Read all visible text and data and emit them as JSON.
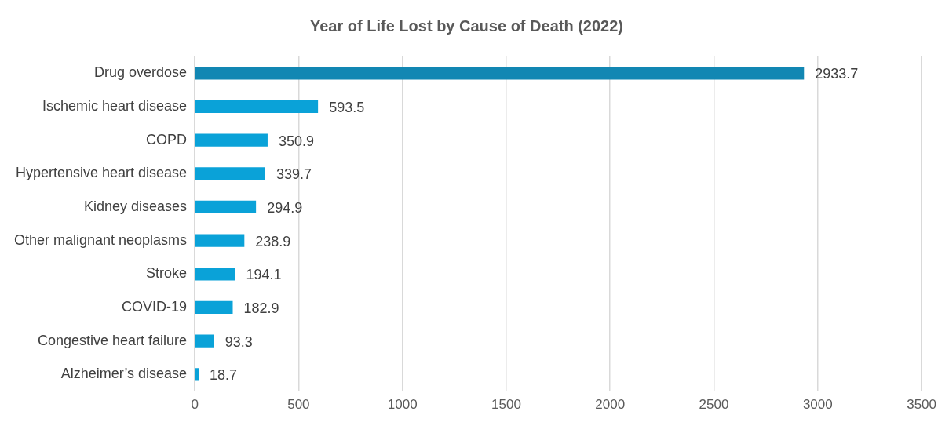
{
  "chart_data": {
    "type": "bar",
    "orientation": "horizontal",
    "title": "Year of Life Lost by Cause of Death (2022)",
    "categories": [
      "Drug overdose",
      "Ischemic heart disease",
      "COPD",
      "Hypertensive heart disease",
      "Kidney diseases",
      "Other malignant neoplasms",
      "Stroke",
      "COVID-19",
      "Congestive heart failure",
      "Alzheimer’s disease"
    ],
    "values": [
      2933.7,
      593.5,
      350.9,
      339.7,
      294.9,
      238.9,
      194.1,
      182.9,
      93.3,
      18.7
    ],
    "colors": [
      "#1287b3",
      "#0aa2d8",
      "#0aa2d8",
      "#0aa2d8",
      "#0aa2d8",
      "#0aa2d8",
      "#0aa2d8",
      "#0aa2d8",
      "#0aa2d8",
      "#0aa2d8"
    ],
    "xlim": [
      0,
      3500
    ],
    "xticks": [
      0,
      500,
      1000,
      1500,
      2000,
      2500,
      3000,
      3500
    ],
    "grid": "x",
    "data_labels": true,
    "legend": false
  }
}
